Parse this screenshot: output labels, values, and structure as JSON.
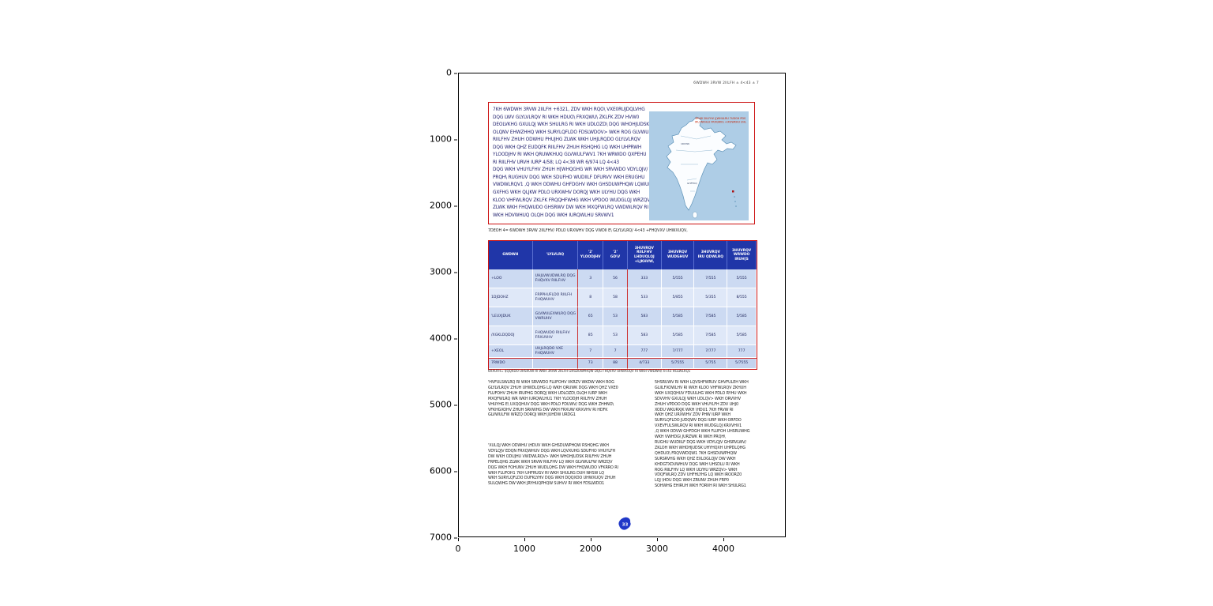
{
  "figure": {
    "yticks": [
      "0",
      "1000",
      "2000",
      "3000",
      "4000",
      "5000",
      "6000",
      "7000"
    ],
    "xticks": [
      "0",
      "1000",
      "2000",
      "3000",
      "4000"
    ]
  },
  "page": {
    "header_right": "6WDWH 3RVW 2IILFH ± 4<43 ± 7",
    "infobox": {
      "lines": [
        "7KH 6WDWH 3RVW 2IILFH +6321, ZDV WKH RQO\\ VXE0RUJDQLVHG",
        "DQG LWV GLYLVLRQV RI WKH HDUO\\ FRXQWU\\ ZKLFK ZDV HVW0",
        "DEOLVKHG GXULQJ WKH SHULRG RI WKH UDLOZD\\ DQG WHOHJUDSK",
        "OLQNV EHWZHHQ WKH SURYLQFLDO FDSLWDOV> WKH ROG GLVWULFW",
        "RIILFHV ZHUH ODWHU PHUJHG ZLWK WKH UHJLRQDO GLYLVLRQV",
        "DQG WKH QHZ EUDQFK RIILFHV ZHUH RSHQHG LQ WKH UHPRWH",
        "YLOODJHV RI WKH QRUWKHUQ GLVWULFWV1 7KH WRWDO QXPEHU",
        "RI RIILFHV URVH IURP 4/58; LQ 4<38 WR 6/974 LQ 4<43",
        "DQG WKH VHUYLFHV ZHUH H[WHQGHG WR WKH SRVWDO VDYLQJV/",
        "PRQH\\ RUGHUV DQG WKH SDUFHO WUDIILF DFURVV WKH ERUGHU",
        "VWDWLRQV1 ,Q WKH ODWHU GHFDGHV WKH GHSDUWPHQW LQWUR0",
        "GXFHG WKH QLJKW PDLO URXWHV DORQJ WKH ULYHU DQG WKH",
        "KLOO VHFWLRQV ZKLFK FRQQHFWHG WKH VPDOO WUDGLQJ WRZQV",
        "ZLWK WKH FHQWUDO GHSRWV DW WKH MXQFWLRQ VWDWLRQV RI",
        "WKH HDVWHUQ OLQH DQG WKH IURQWLHU SRVWV1"
      ]
    },
    "map": {
      "title_line1": "3RVW 2IILFHV ([WHULRU 7UDGH PDS",
      "title_line2": "IRU WKHLU FRXQWU\\ +IXUWKHU UHI,",
      "label1": "1RUWK",
      "label2": "GHFFDQ"
    },
    "caption": "7DEOH 4= 6WDWH 3RVW 2IILFHV/ PDLO URXWHV DQG VWDII E\\ GLYLVLRQ/ 4<43 +FHQVXV UHWXUQV,",
    "table": {
      "headers": [
        "6WDWH",
        "'LYLVLRQ",
        "'2'\nYLOODJHV",
        "'2'\nGD\\V",
        "3HUVRQV\nRIILFHV\nLHDUQLQJ\n+LJKHVW,",
        "3HUVRQV\nWUDGHUV",
        "3HUVRQV\nIRU QDWLRQ",
        "3HUVRQV\nWRWDO\nIRUH[S"
      ],
      "rows": [
        {
          "c0": "+LOO",
          "c1": "UHJLVWUDWLRQ DQG\nFHQVXV RIILFHV",
          "c2": "3",
          "c3": "56",
          "c4": "333",
          "c5": "5/555",
          "c6": "7/555",
          "c7": "5/555"
        },
        {
          "c0": "1DJDOHZ",
          "c1": "FRPPHUFLDO RIILFH\nFHQWUHV",
          "c2": "8",
          "c3": "58",
          "c4": "533",
          "c5": "5/855",
          "c6": "5/355",
          "c7": "8/555"
        },
        {
          "c0": "'LEUXJDUK",
          "c1": "GLVWULEXWLRQ DQG\nVWRUHV",
          "c2": "65",
          "c3": "53",
          "c4": "583",
          "c5": "5/585",
          "c6": "7/585",
          "c7": "5/585"
        },
        {
          "c0": "/XGKLDQDOJ",
          "c1": "FHQWUDO RIILFHV\nFRXUVHV",
          "c2": "85",
          "c3": "53",
          "c4": "583",
          "c5": "5/585",
          "c6": "7/585",
          "c7": "5/585"
        },
        {
          "c0": "+XEOL",
          "c1": "UHJLRQDO VXE\nFHQWUHV",
          "c2": "7",
          "c3": "7",
          "c4": "777",
          "c5": "7/777",
          "c6": "7/777",
          "c7": "777"
        },
        {
          "c0": "7RWDO",
          "c1": "",
          "c2": "73",
          "c3": "88",
          "c4": "4/733",
          "c5": "5/7555",
          "c6": "5/755",
          "c7": "5/7555"
        }
      ],
      "footnote": "6RXUFH= $QQXDO UHSRUW RI WKH 3RVW 2IILFH GHSDUWPHQW DQG FHQVXV UHWXUQV RI WKH VWDWH/ 4<43 HGLWLRQ1"
    },
    "body": {
      "left1": [
        "'HVFULSWLRQ RI WKH SRVWDO FLUFOHV VKRZV WKDW WKH ROG",
        "GLYLVLRQV ZHUH UHWDLQHG LQ WKH QRUWK DQG WKH QHZ VXE0",
        "FLUFOHV ZHUH IRUPHG DORQJ WKH UDLOZD\\ OLQH IURP WKH",
        "MXQFWLRQ WR WKH IURQWLHU1 7KH YLOODJH RIILFHV ZHUH",
        "VHUYHG E\\ UXQQHUV DQG WKH PDLO FDUWV/ DQG WKH ZHHNO\\",
        "VFKHGXOHV ZHUH SRVWHG DW WKH FRXUW KRXVHV RI HDFK",
        "GLVWULFW WRZQ DORQJ WKH JUHDW URDG1"
      ],
      "left2": [
        "'XULQJ WKH ODWHU \\HDUV WKH GHSDUWPHQW RSHQHG WKH",
        "VDYLQJV EDQN FRXQWHUV DQG WKH LQVXUHG SDUFHO VHUYLFH",
        "DW WKH ODUJHU VWDWLRQV> WKH WHOHJUDSK RIILFHV ZHUH",
        "FRPELQHG ZLWK WKH SRVW RIILFHV LQ WKH GLVWULFW WRZQV",
        "DQG WKH FOHUNV ZHUH WUDLQHG DW WKH FHQWUDO VFKRRO RI",
        "WKH FLUFOH1 7KH UHFRUGV RI WKH SHULRG DUH NHSW LQ",
        "WKH SURYLQFLDO DUFKLYHV DQG WKH DQQXDO UHWXUQV ZHUH",
        "SULQWHG DW WKH JRYHUQPHQW SUHVV RI WKH FDSLWDO1"
      ],
      "right": [
        "5HSRUWV RI WKH LQVSHFWRUV GHVFULEH WKH",
        "GLIILFXOWLHV RI WKH KLOO VHFWLRQV ZKHUH",
        "WKH UXQQHUV FDUULHG WKH PDLO RYHU WKH",
        "SDVVHV GXULQJ WKH UDLQV> WKH ORVVHV",
        "ZHUH VPDOO DQG WKH VHUYLFH ZDV UHJ0",
        "XODU WKURXJK WKH \\HDU1 7KH FRVW RI",
        "WKH QHZ URXWHV ZDV PHW IURP WKH",
        "SURYLQFLDO JUDQWV DQG IURP WKH ORFDO",
        "VXEVFULSWLRQV RI WKH WUDGLQJ KRXVHV1",
        ",Q WKH ODVW GHFDGH WKH FLUFOH UHSRUWHG",
        "WKH VWHDG\\ JURZWK RI WKH PRQH\\",
        "RUGHU WUDIILF DQG WKH VDYLQJV GHSRVLWV/",
        "ZKLOH WKH WHOHJUDSK UHYHQXH UHPDLQHG",
        "QHDUO\\ FRQVWDQW1 7KH GHSDUWPHQW",
        "SURSRVHG WKH QHZ EXLOGLQJV DW WKH",
        "KHDGTXDUWHUV DQG WKH UHSDLU RI WKH",
        "ROG RIILFHV LQ WKH ULYHU WRZQV> WKH",
        "VDQFWLRQ ZDV UHFHLYHG LQ WKH IROORZ0",
        "LQJ \\HDU DQG WKH ZRUNV ZHUH FRP0",
        "SOHWHG EHIRUH WKH FORVH RI WKH SHULRG1"
      ]
    },
    "stamp": "33"
  },
  "colors": {
    "box_border": "#cc1111",
    "table_header_bg": "#2036a8",
    "row_light": "#ccdaf2",
    "row_lighter": "#dfe8f8",
    "map_bg": "#aecde6",
    "map_title": "#c42000",
    "stamp_blue": "#2038c8",
    "ink": "#1c1c6b"
  }
}
